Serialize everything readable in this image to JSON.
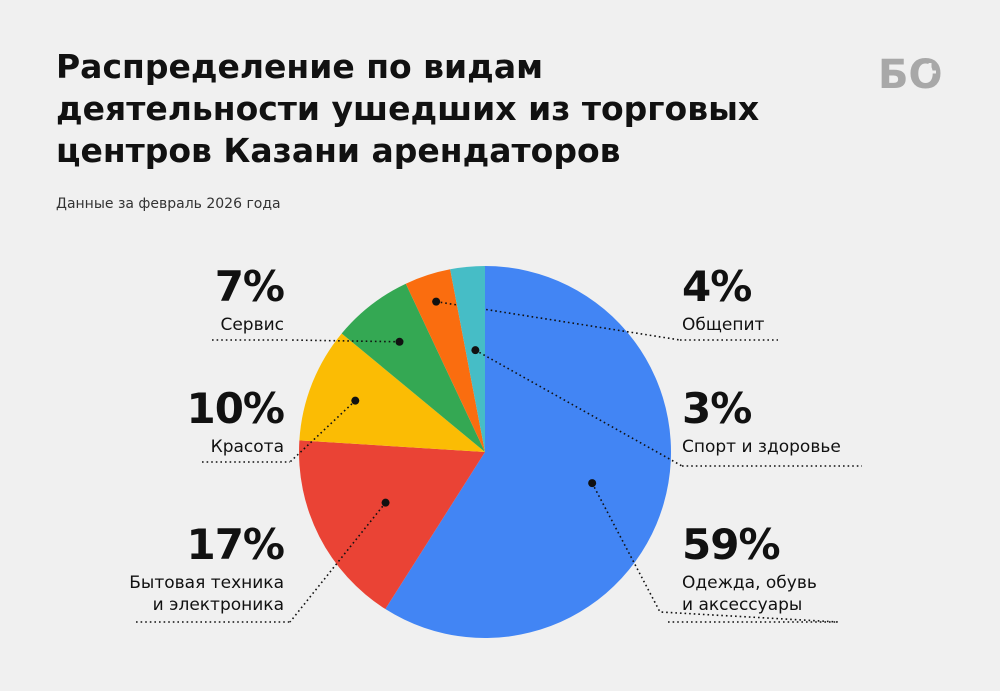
{
  "header": {
    "title": "Распределение по видам деятельности ушедших из торговых центров Казани арендаторов",
    "subtitle": "Данные за февраль 2026 года",
    "logo_text": "БО"
  },
  "chart_data": {
    "type": "pie",
    "title": "Распределение по видам деятельности ушедших из торговых центров Казани арендаторов",
    "subtitle": "Данные за февраль 2026 года",
    "slices": [
      {
        "label_lines": [
          "Одежда, обувь",
          "и аксессуары"
        ],
        "value": 59,
        "pct_text": "59%",
        "color": "#4285f4"
      },
      {
        "label_lines": [
          "Бытовая техника",
          "и электроника"
        ],
        "value": 17,
        "pct_text": "17%",
        "color": "#ea4335"
      },
      {
        "label_lines": [
          "Красота"
        ],
        "value": 10,
        "pct_text": "10%",
        "color": "#fbbc04"
      },
      {
        "label_lines": [
          "Сервис"
        ],
        "value": 7,
        "pct_text": "7%",
        "color": "#34a853"
      },
      {
        "label_lines": [
          "Общепит"
        ],
        "value": 4,
        "pct_text": "4%",
        "color": "#fa6d0f"
      },
      {
        "label_lines": [
          "Спорт и здоровье"
        ],
        "value": 3,
        "pct_text": "3%",
        "color": "#46bdc6"
      }
    ]
  }
}
